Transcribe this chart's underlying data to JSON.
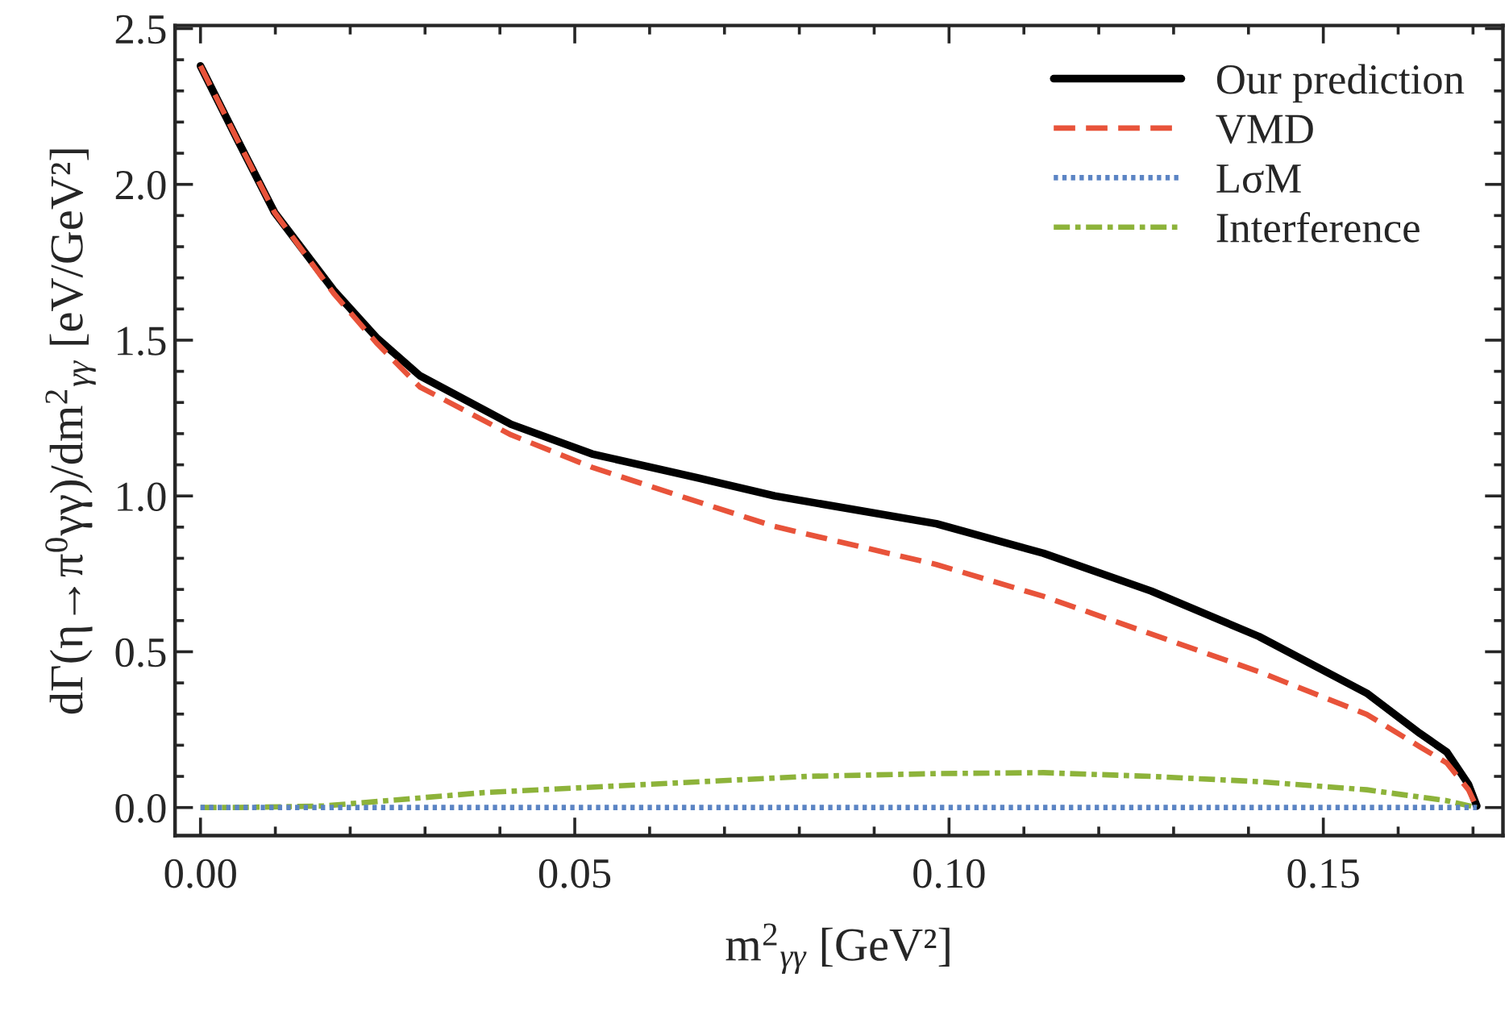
{
  "chart_data": {
    "type": "line",
    "xlabel": "m$^{2}$$_{γγ}$ [GeV²]",
    "ylabel": "dΓ(η→π$^{0}$γγ)/dm$^{2}$$_{γγ}$ [eV/GeV²]",
    "xlim": [
      -0.0034,
      0.174
    ],
    "ylim": [
      -0.09,
      2.51
    ],
    "xticks": [
      {
        "value": 0,
        "label": "0.00"
      },
      0.05,
      {
        "value": 0.1,
        "label": "0.10"
      },
      0.15
    ],
    "yticks": [
      {
        "value": 0,
        "label": "0.0"
      },
      0.5,
      {
        "value": 1,
        "label": "1.0"
      },
      1.5,
      {
        "value": 2,
        "label": "2.0"
      },
      2.5
    ],
    "grid": false,
    "legend": "top right",
    "marker": "none",
    "series": [
      {
        "name": "Our prediction",
        "color": "#000000",
        "line_style": "solid",
        "x": [
          0,
          0.0049,
          0.0099,
          0.0178,
          0.0236,
          0.0293,
          0.0415,
          0.0523,
          0.0666,
          0.0767,
          0.0983,
          0.1126,
          0.127,
          0.1414,
          0.1558,
          0.1629,
          0.1665,
          0.1694,
          0.1705
        ],
        "values": [
          2.38,
          2.145,
          1.91,
          1.66,
          1.506,
          1.386,
          1.23,
          1.135,
          1.057,
          1.0,
          0.911,
          0.816,
          0.695,
          0.549,
          0.367,
          0.238,
          0.178,
          0.074,
          0.005
        ]
      },
      {
        "name": "VMD",
        "color": "#e8533a",
        "line_style": "dashed",
        "x": [
          0,
          0.0049,
          0.0099,
          0.0178,
          0.0236,
          0.0293,
          0.0415,
          0.0523,
          0.0666,
          0.0767,
          0.0983,
          0.1126,
          0.127,
          0.1414,
          0.1558,
          0.1629,
          0.1665,
          0.1694,
          0.1705
        ],
        "values": [
          2.38,
          2.145,
          1.91,
          1.65,
          1.489,
          1.35,
          1.196,
          1.092,
          0.98,
          0.902,
          0.78,
          0.678,
          0.557,
          0.436,
          0.299,
          0.195,
          0.143,
          0.057,
          0.0
        ]
      },
      {
        "name": "LσM",
        "color": "#5b84c4",
        "line_style": "dotted",
        "x": [
          0,
          0.1705
        ],
        "values": [
          0.0,
          0.0
        ]
      },
      {
        "name": "Interference",
        "color": "#8db33a",
        "line_style": "dashdot",
        "x": [
          0,
          0.005,
          0.0164,
          0.0379,
          0.0594,
          0.081,
          0.0983,
          0.1126,
          0.127,
          0.1414,
          0.1558,
          0.1665,
          0.1705
        ],
        "values": [
          0.0,
          0.0,
          0.005,
          0.048,
          0.074,
          0.1,
          0.109,
          0.112,
          0.1,
          0.083,
          0.057,
          0.022,
          0.0
        ]
      }
    ]
  }
}
